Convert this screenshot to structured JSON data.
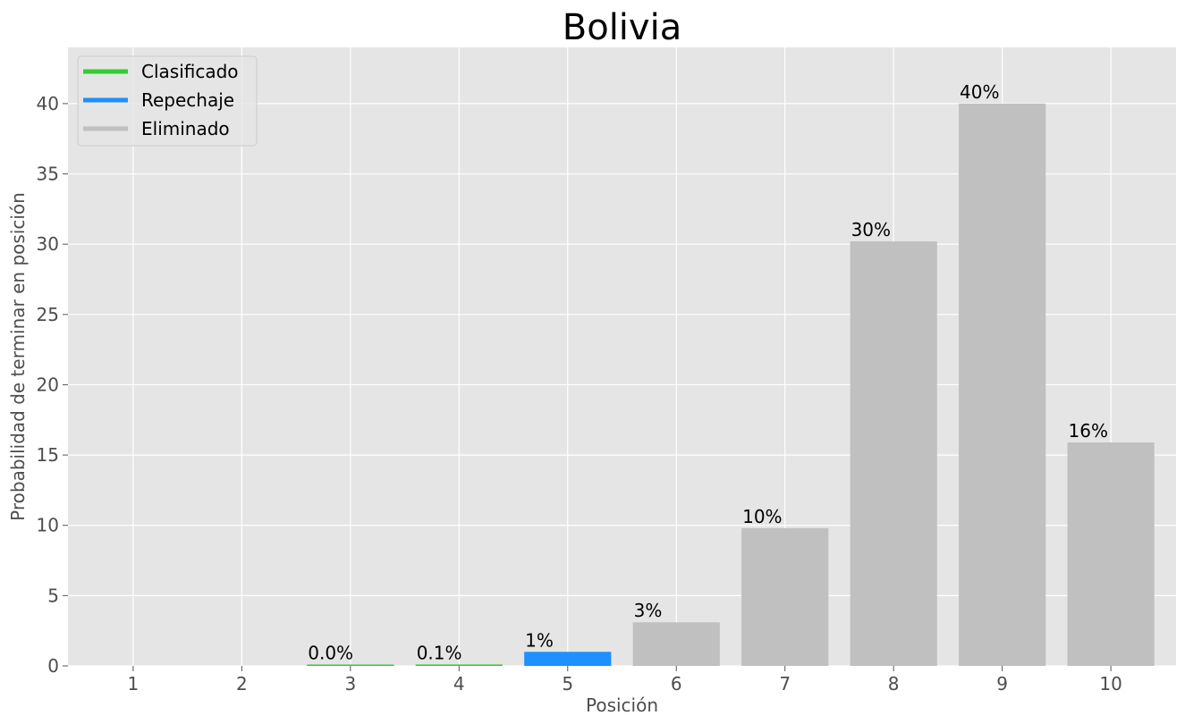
{
  "chart_data": {
    "type": "bar",
    "title": "Bolivia",
    "xlabel": "Posición",
    "ylabel": "Probabilidad de terminar en posición",
    "categories": [
      "1",
      "2",
      "3",
      "4",
      "5",
      "6",
      "7",
      "8",
      "9",
      "10"
    ],
    "values": [
      0,
      0,
      0.02,
      0.1,
      1.0,
      3.1,
      9.8,
      30.2,
      40.0,
      15.9
    ],
    "data_labels": [
      "",
      "",
      "0.0%",
      "0.1%",
      "1%",
      "3%",
      "10%",
      "30%",
      "40%",
      "16%"
    ],
    "bar_status": [
      "Clasificado",
      "Clasificado",
      "Clasificado",
      "Clasificado",
      "Repechaje",
      "Eliminado",
      "Eliminado",
      "Eliminado",
      "Eliminado",
      "Eliminado"
    ],
    "status_colors": {
      "Clasificado": "#32cd32",
      "Repechaje": "#1e90ff",
      "Eliminado": "#c0c0c0"
    },
    "legend": {
      "placement": "top-left",
      "entries": [
        "Clasificado",
        "Repechaje",
        "Eliminado"
      ]
    },
    "ylim": [
      0,
      44
    ],
    "yticks": [
      0,
      5,
      10,
      15,
      20,
      25,
      30,
      35,
      40
    ],
    "grid": true,
    "background_color": "#e5e5e5",
    "grid_color": "#ffffff"
  }
}
